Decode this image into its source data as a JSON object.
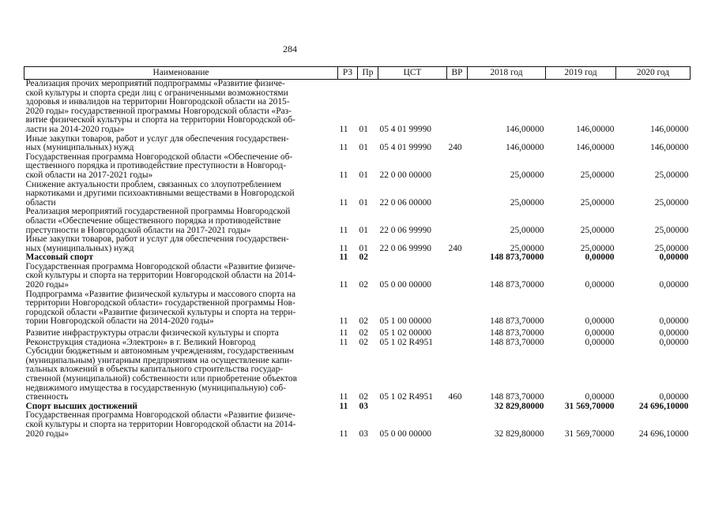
{
  "page_number": "284",
  "headers": [
    "Наименование",
    "РЗ",
    "Пр",
    "ЦСТ",
    "ВР",
    "2018 год",
    "2019 год",
    "2020 год"
  ],
  "rows": [
    {
      "name": "Реализация прочих мероприятий подпрограммы «Развитие физиче-\nской культуры и спорта среди лиц с ограниченными возможностями\nздоровья и инвалидов на территории Новгородской области на 2015-\n2020 годы» государственной программы Новгородской области «Раз-\nвитие физической культуры и спорта на территории Новгородской об-\nласти на 2014-2020 годы»",
      "rz": "11",
      "pr": "01",
      "cst": "05 4 01 99990",
      "vr": "",
      "y2018": "146,00000",
      "y2019": "146,00000",
      "y2020": "146,00000",
      "bold": false
    },
    {
      "name": "Иные закупки товаров, работ и услуг для обеспечения государствен-\nных (муниципальных) нужд",
      "rz": "11",
      "pr": "01",
      "cst": "05 4 01 99990",
      "vr": "240",
      "y2018": "146,00000",
      "y2019": "146,00000",
      "y2020": "146,00000",
      "bold": false
    },
    {
      "name": "Государственная программа Новгородской области «Обеспечение об-\nщественного порядка и противодействие преступности в Новгород-\nской области на 2017-2021 годы»",
      "rz": "11",
      "pr": "01",
      "cst": "22 0 00 00000",
      "vr": "",
      "y2018": "25,00000",
      "y2019": "25,00000",
      "y2020": "25,00000",
      "bold": false
    },
    {
      "name": "Снижение актуальности проблем, связанных со злоупотреблением\nнаркотиками и другими психоактивными веществами в Новгородской\nобласти",
      "rz": "11",
      "pr": "01",
      "cst": "22 0 06 00000",
      "vr": "",
      "y2018": "25,00000",
      "y2019": "25,00000",
      "y2020": "25,00000",
      "bold": false
    },
    {
      "name": "Реализация мероприятий государственной программы Новгородской\nобласти «Обеспечение общественного порядка и противодействие\nпреступности в Новгородской области на 2017-2021 годы»",
      "rz": "11",
      "pr": "01",
      "cst": "22 0 06 99990",
      "vr": "",
      "y2018": "25,00000",
      "y2019": "25,00000",
      "y2020": "25,00000",
      "bold": false
    },
    {
      "name": "Иные закупки товаров, работ и услуг для обеспечения государствен-\nных (муниципальных) нужд",
      "rz": "11",
      "pr": "01",
      "cst": "22 0 06 99990",
      "vr": "240",
      "y2018": "25,00000",
      "y2019": "25,00000",
      "y2020": "25,00000",
      "bold": false
    },
    {
      "name": "Массовый спорт",
      "rz": "11",
      "pr": "02",
      "cst": "",
      "vr": "",
      "y2018": "148 873,70000",
      "y2019": "0,00000",
      "y2020": "0,00000",
      "bold": true
    },
    {
      "name": "Государственная программа Новгородской области «Развитие физиче-\nской культуры и спорта на территории Новгородской области на 2014-\n2020 годы»",
      "rz": "11",
      "pr": "02",
      "cst": "05 0 00 00000",
      "vr": "",
      "y2018": "148 873,70000",
      "y2019": "0,00000",
      "y2020": "0,00000",
      "bold": false
    },
    {
      "name": "Подпрограмма «Развитие физической культуры и массового спорта на\nтерритории Новгородской области» государственной программы Нов-\nгородской области «Развитие физической культуры и спорта на терри-\nтории Новгородской области на 2014-2020 годы»",
      "rz": "11",
      "pr": "02",
      "cst": "05 1 00 00000",
      "vr": "",
      "y2018": "148 873,70000",
      "y2019": "0,00000",
      "y2020": "0,00000",
      "bold": false
    },
    {
      "name": "Развитие инфраструктуры отрасли физической культуры и спорта",
      "rz": "11",
      "pr": "02",
      "cst": "05 1 02 00000",
      "vr": "",
      "y2018": "148 873,70000",
      "y2019": "0,00000",
      "y2020": "0,00000",
      "bold": false
    },
    {
      "name": "Реконструкция стадиона «Электрон» в г. Великий Новгород",
      "rz": "11",
      "pr": "02",
      "cst": "05 1 02 R4951",
      "vr": "",
      "y2018": "148 873,70000",
      "y2019": "0,00000",
      "y2020": "0,00000",
      "bold": false
    },
    {
      "name": "Субсидии бюджетным и автономным учреждениям, государственным\n(муниципальным) унитарным предприятиям на осуществление капи-\nтальных вложений в объекты капитального строительства государ-\nственной (муниципальной) собственности или приобретение объектов\nнедвижимого имущества в государственную (муниципальную) соб-\nственность",
      "rz": "11",
      "pr": "02",
      "cst": "05 1 02 R4951",
      "vr": "460",
      "y2018": "148 873,70000",
      "y2019": "0,00000",
      "y2020": "0,00000",
      "bold": false
    },
    {
      "name": "Спорт высших достижений",
      "rz": "11",
      "pr": "03",
      "cst": "",
      "vr": "",
      "y2018": "32 829,80000",
      "y2019": "31 569,70000",
      "y2020": "24 696,10000",
      "bold": true
    },
    {
      "name": "Государственная программа Новгородской области «Развитие физиче-\nской культуры и спорта на территории Новгородской области на 2014-\n2020 годы»",
      "rz": "11",
      "pr": "03",
      "cst": "05 0 00 00000",
      "vr": "",
      "y2018": "32 829,80000",
      "y2019": "31 569,70000",
      "y2020": "24 696,10000",
      "bold": false
    }
  ]
}
